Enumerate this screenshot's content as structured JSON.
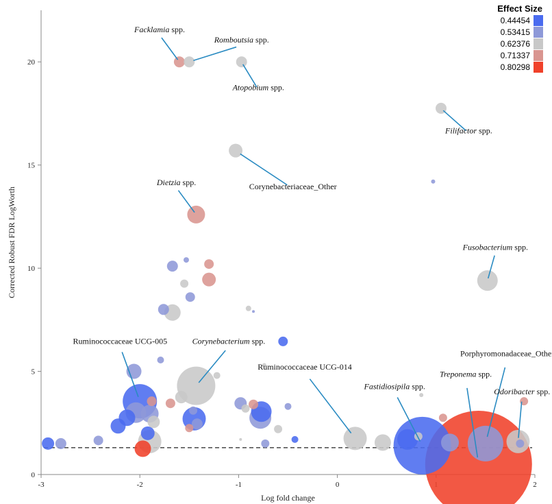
{
  "chart_data": {
    "type": "scatter",
    "xlabel": "Log fold change",
    "ylabel": "Corrected Robust FDR LogWorth",
    "xlim": [
      -3,
      2
    ],
    "ylim": [
      0,
      22.5
    ],
    "xticks": [
      -3,
      -2,
      -1,
      0,
      1,
      2
    ],
    "yticks": [
      0,
      5,
      10,
      15,
      20
    ],
    "threshold_y": 1.3,
    "grid": false,
    "legend": {
      "title": "Effect Size",
      "position": "top-right",
      "entries": [
        {
          "label": "0.44454",
          "color": "#4a6bef"
        },
        {
          "label": "0.53415",
          "color": "#8e99d8"
        },
        {
          "label": "0.62376",
          "color": "#c8c8c8"
        },
        {
          "label": "0.71337",
          "color": "#d99590"
        },
        {
          "label": "0.80298",
          "color": "#f0412a"
        }
      ]
    },
    "points": [
      {
        "x": 1.43,
        "y": 0.5,
        "size": 78,
        "color": "#f0412a"
      },
      {
        "x": 0.86,
        "y": 1.4,
        "size": 42,
        "color": "#4a6bef"
      },
      {
        "x": 1.5,
        "y": 1.5,
        "size": 26,
        "color": "#8e99d8"
      },
      {
        "x": 1.83,
        "y": 1.6,
        "size": 17,
        "color": "#c8c8c8"
      },
      {
        "x": 1.89,
        "y": 3.55,
        "size": 6,
        "color": "#d99590"
      },
      {
        "x": 1.85,
        "y": 1.5,
        "size": 6,
        "color": "#8e99d8"
      },
      {
        "x": 1.07,
        "y": 2.75,
        "size": 6,
        "color": "#d99590"
      },
      {
        "x": 1.14,
        "y": 1.55,
        "size": 13,
        "color": "#8e99d8"
      },
      {
        "x": 0.71,
        "y": 1.7,
        "size": 15,
        "color": "#4a6bef"
      },
      {
        "x": 0.85,
        "y": 3.85,
        "size": 3,
        "color": "#c8c8c8"
      },
      {
        "x": 0.18,
        "y": 1.75,
        "size": 17,
        "color": "#c8c8c8"
      },
      {
        "x": 0.46,
        "y": 1.55,
        "size": 12,
        "color": "#c8c8c8"
      },
      {
        "x": 0.82,
        "y": 1.85,
        "size": 6,
        "color": "#c8c8c8"
      },
      {
        "x": 1.52,
        "y": 9.4,
        "size": 15,
        "color": "#c8c8c8"
      },
      {
        "x": 1.05,
        "y": 17.75,
        "size": 8,
        "color": "#c8c8c8"
      },
      {
        "x": 0.97,
        "y": 14.2,
        "size": 3,
        "color": "#8e99d8"
      },
      {
        "x": -1.6,
        "y": 20.0,
        "size": 8,
        "color": "#d99590"
      },
      {
        "x": -1.5,
        "y": 20.0,
        "size": 8,
        "color": "#c8c8c8"
      },
      {
        "x": -0.97,
        "y": 20.0,
        "size": 8,
        "color": "#c8c8c8"
      },
      {
        "x": -1.03,
        "y": 15.7,
        "size": 10,
        "color": "#c8c8c8"
      },
      {
        "x": -1.43,
        "y": 12.6,
        "size": 13,
        "color": "#d99590"
      },
      {
        "x": -1.67,
        "y": 10.1,
        "size": 8,
        "color": "#8e99d8"
      },
      {
        "x": -1.53,
        "y": 10.4,
        "size": 4,
        "color": "#8e99d8"
      },
      {
        "x": -1.3,
        "y": 10.2,
        "size": 7,
        "color": "#d99590"
      },
      {
        "x": -1.3,
        "y": 9.45,
        "size": 10,
        "color": "#d99590"
      },
      {
        "x": -1.55,
        "y": 9.25,
        "size": 6,
        "color": "#c8c8c8"
      },
      {
        "x": -1.49,
        "y": 8.6,
        "size": 7,
        "color": "#8e99d8"
      },
      {
        "x": -1.76,
        "y": 8.0,
        "size": 8,
        "color": "#8e99d8"
      },
      {
        "x": -1.67,
        "y": 7.85,
        "size": 12,
        "color": "#c8c8c8"
      },
      {
        "x": -0.9,
        "y": 8.05,
        "size": 4,
        "color": "#c8c8c8"
      },
      {
        "x": -0.85,
        "y": 7.9,
        "size": 2,
        "color": "#8e99d8"
      },
      {
        "x": -0.55,
        "y": 6.45,
        "size": 7,
        "color": "#4a6bef"
      },
      {
        "x": -1.79,
        "y": 5.55,
        "size": 5,
        "color": "#8e99d8"
      },
      {
        "x": -2.06,
        "y": 5.0,
        "size": 11,
        "color": "#8e99d8"
      },
      {
        "x": -1.22,
        "y": 4.8,
        "size": 5,
        "color": "#c8c8c8"
      },
      {
        "x": -0.74,
        "y": 5.3,
        "size": 3,
        "color": "#c8c8c8"
      },
      {
        "x": -1.43,
        "y": 4.3,
        "size": 28,
        "color": "#c8c8c8"
      },
      {
        "x": -2.0,
        "y": 3.55,
        "size": 25,
        "color": "#4a6bef"
      },
      {
        "x": -2.04,
        "y": 3.0,
        "size": 15,
        "color": "#8e99d8"
      },
      {
        "x": -2.13,
        "y": 2.75,
        "size": 12,
        "color": "#4a6bef"
      },
      {
        "x": -2.22,
        "y": 2.35,
        "size": 11,
        "color": "#4a6bef"
      },
      {
        "x": -1.9,
        "y": 2.95,
        "size": 13,
        "color": "#8e99d8"
      },
      {
        "x": -1.86,
        "y": 2.55,
        "size": 9,
        "color": "#c8c8c8"
      },
      {
        "x": -1.92,
        "y": 2.0,
        "size": 10,
        "color": "#4a6bef"
      },
      {
        "x": -1.9,
        "y": 1.6,
        "size": 17,
        "color": "#c8c8c8"
      },
      {
        "x": -1.97,
        "y": 1.25,
        "size": 12,
        "color": "#f0412a"
      },
      {
        "x": -1.88,
        "y": 3.55,
        "size": 7,
        "color": "#d99590"
      },
      {
        "x": -1.69,
        "y": 3.45,
        "size": 7,
        "color": "#d99590"
      },
      {
        "x": -1.58,
        "y": 3.75,
        "size": 9,
        "color": "#c8c8c8"
      },
      {
        "x": -1.45,
        "y": 2.7,
        "size": 17,
        "color": "#4a6bef"
      },
      {
        "x": -1.42,
        "y": 2.45,
        "size": 8,
        "color": "#8e99d8"
      },
      {
        "x": -1.46,
        "y": 3.1,
        "size": 6,
        "color": "#8e99d8"
      },
      {
        "x": -1.5,
        "y": 2.25,
        "size": 6,
        "color": "#d99590"
      },
      {
        "x": -0.98,
        "y": 3.45,
        "size": 9,
        "color": "#8e99d8"
      },
      {
        "x": -0.93,
        "y": 3.2,
        "size": 6,
        "color": "#c8c8c8"
      },
      {
        "x": -0.85,
        "y": 3.4,
        "size": 7,
        "color": "#d99590"
      },
      {
        "x": -0.77,
        "y": 3.05,
        "size": 15,
        "color": "#4a6bef"
      },
      {
        "x": -0.78,
        "y": 2.75,
        "size": 16,
        "color": "#8e99d8"
      },
      {
        "x": -0.5,
        "y": 3.3,
        "size": 5,
        "color": "#8e99d8"
      },
      {
        "x": -0.6,
        "y": 2.2,
        "size": 6,
        "color": "#c8c8c8"
      },
      {
        "x": -0.73,
        "y": 1.5,
        "size": 6,
        "color": "#8e99d8"
      },
      {
        "x": -0.43,
        "y": 1.7,
        "size": 5,
        "color": "#4a6bef"
      },
      {
        "x": -0.98,
        "y": 1.7,
        "size": 2,
        "color": "#c8c8c8"
      },
      {
        "x": -2.42,
        "y": 1.65,
        "size": 7,
        "color": "#8e99d8"
      },
      {
        "x": -2.93,
        "y": 1.5,
        "size": 9,
        "color": "#4a6bef"
      },
      {
        "x": -2.8,
        "y": 1.5,
        "size": 8,
        "color": "#8e99d8"
      }
    ],
    "annotations": [
      {
        "label": "Facklamia",
        "suffix": " spp.",
        "italic": true,
        "x": -1.6,
        "y": 20.0,
        "lx": -1.8,
        "ly": 21.3
      },
      {
        "label": "Romboutsia",
        "suffix": " spp.",
        "italic": true,
        "x": -1.5,
        "y": 20.0,
        "lx": -0.97,
        "ly": 20.8
      },
      {
        "label": "Atopobium",
        "suffix": " spp.",
        "italic": true,
        "x": -0.97,
        "y": 20.0,
        "lx": -0.8,
        "ly": 18.5
      },
      {
        "label": "Filifactor",
        "suffix": " spp.",
        "italic": true,
        "x": 1.05,
        "y": 17.75,
        "lx": 1.33,
        "ly": 16.4
      },
      {
        "label": "Corynebacteriaceae_Other",
        "suffix": "",
        "italic": false,
        "x": -1.03,
        "y": 15.7,
        "lx": -0.45,
        "ly": 13.7
      },
      {
        "label": "Dietzia",
        "suffix": " spp.",
        "italic": true,
        "x": -1.43,
        "y": 12.6,
        "lx": -1.63,
        "ly": 13.9
      },
      {
        "label": "Fusobacterium",
        "suffix": " spp.",
        "italic": true,
        "x": 1.52,
        "y": 9.4,
        "lx": 1.6,
        "ly": 10.75
      },
      {
        "label": "Ruminococcaceae UCG-005",
        "suffix": "",
        "italic": false,
        "x": -2.0,
        "y": 3.55,
        "lx": -2.2,
        "ly": 6.2
      },
      {
        "label": "Corynebacterium",
        "suffix": " spp.",
        "italic": true,
        "x": -1.43,
        "y": 4.3,
        "lx": -1.1,
        "ly": 6.2
      },
      {
        "label": "Ruminococcaceae UCG-014",
        "suffix": "",
        "italic": false,
        "x": 0.18,
        "y": 1.75,
        "lx": -0.33,
        "ly": 4.95
      },
      {
        "label": "Porphyromonadaceae_Other",
        "suffix": "",
        "italic": false,
        "x": 1.5,
        "y": 1.5,
        "lx": 1.72,
        "ly": 5.6
      },
      {
        "label": "Treponema",
        "suffix": " spp.",
        "italic": true,
        "x": 1.43,
        "y": 0.5,
        "lx": 1.3,
        "ly": 4.6
      },
      {
        "label": "Fastidiosipila",
        "suffix": " spp.",
        "italic": true,
        "x": 0.86,
        "y": 1.4,
        "lx": 0.58,
        "ly": 4.0
      },
      {
        "label": "Odoribacter",
        "suffix": " spp.",
        "italic": true,
        "x": 1.83,
        "y": 1.6,
        "lx": 1.87,
        "ly": 3.75
      }
    ]
  }
}
